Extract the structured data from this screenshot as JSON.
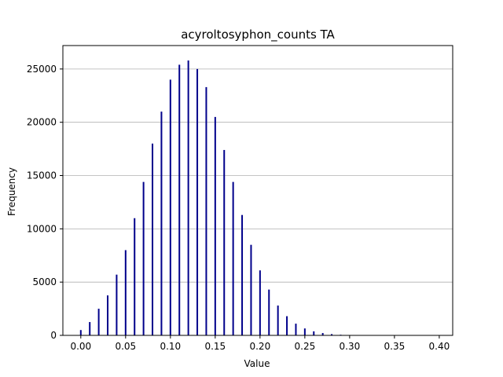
{
  "chart_data": {
    "type": "bar",
    "title": "acyroltosyphon_counts TA",
    "xlabel": "Value",
    "ylabel": "Frequency",
    "xlim": [
      -0.02,
      0.415
    ],
    "ylim": [
      0,
      27200
    ],
    "xticks": [
      0.0,
      0.05,
      0.1,
      0.15,
      0.2,
      0.25,
      0.3,
      0.35,
      0.4
    ],
    "xtick_labels": [
      "0.00",
      "0.05",
      "0.10",
      "0.15",
      "0.20",
      "0.25",
      "0.30",
      "0.35",
      "0.40"
    ],
    "yticks": [
      0,
      5000,
      10000,
      15000,
      20000,
      25000
    ],
    "ytick_labels": [
      "0",
      "5000",
      "10000",
      "15000",
      "20000",
      "25000"
    ],
    "grid": "y",
    "bar_color": "#00008b",
    "x": [
      0.0,
      0.01,
      0.02,
      0.03,
      0.04,
      0.05,
      0.06,
      0.07,
      0.08,
      0.09,
      0.1,
      0.11,
      0.12,
      0.13,
      0.14,
      0.15,
      0.16,
      0.17,
      0.18,
      0.19,
      0.2,
      0.21,
      0.22,
      0.23,
      0.24,
      0.25,
      0.26,
      0.27,
      0.28,
      0.29,
      0.3
    ],
    "values": [
      500,
      1250,
      2500,
      3750,
      5700,
      8000,
      11000,
      14400,
      18000,
      21000,
      24000,
      25400,
      25800,
      25000,
      23300,
      20500,
      17400,
      14400,
      11300,
      8500,
      6100,
      4300,
      2800,
      1800,
      1100,
      650,
      380,
      220,
      120,
      60,
      30
    ]
  }
}
